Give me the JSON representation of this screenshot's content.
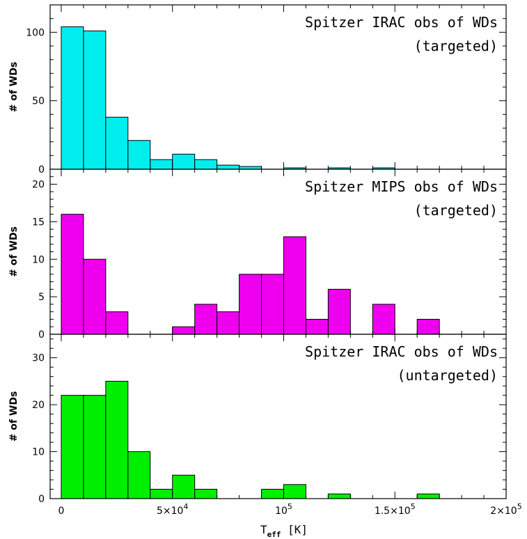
{
  "chart_data": [
    {
      "type": "bar",
      "title": "Spitzer IRAC obs of WDs",
      "subtitle": "(targeted)",
      "ylabel": "# of WDs",
      "color": "#00eeee",
      "ylim": [
        0,
        120
      ],
      "yticks": [
        0,
        50,
        100
      ],
      "bin_width": 10000,
      "x": [
        0,
        10000,
        20000,
        30000,
        40000,
        50000,
        60000,
        70000,
        80000,
        90000,
        100000,
        110000,
        120000,
        130000,
        140000,
        150000,
        160000
      ],
      "values": [
        104,
        101,
        38,
        21,
        7,
        11,
        7,
        3,
        2,
        0,
        1,
        0,
        1,
        0,
        1,
        0,
        0
      ]
    },
    {
      "type": "bar",
      "title": "Spitzer MIPS obs of WDs",
      "subtitle": "(targeted)",
      "ylabel": "# of WDs",
      "color": "#ee00ee",
      "ylim": [
        0,
        22
      ],
      "yticks": [
        0,
        5,
        10,
        15,
        20
      ],
      "bin_width": 10000,
      "x": [
        0,
        10000,
        20000,
        30000,
        40000,
        50000,
        60000,
        70000,
        80000,
        90000,
        100000,
        110000,
        120000,
        130000,
        140000,
        150000,
        160000
      ],
      "values": [
        16,
        10,
        3,
        0,
        0,
        1,
        4,
        3,
        8,
        8,
        13,
        2,
        6,
        0,
        4,
        0,
        2
      ]
    },
    {
      "type": "bar",
      "title": "Spitzer IRAC obs of WDs",
      "subtitle": "(untargeted)",
      "ylabel": "# of WDs",
      "color": "#00ee00",
      "ylim": [
        0,
        35
      ],
      "yticks": [
        0,
        10,
        20,
        30
      ],
      "bin_width": 10000,
      "x": [
        0,
        10000,
        20000,
        30000,
        40000,
        50000,
        60000,
        70000,
        80000,
        90000,
        100000,
        110000,
        120000,
        130000,
        140000,
        150000,
        160000
      ],
      "values": [
        22,
        22,
        25,
        10,
        2,
        5,
        2,
        0,
        0,
        2,
        3,
        0,
        1,
        0,
        0,
        0,
        1
      ]
    }
  ],
  "x_axis": {
    "label_main": "T",
    "label_sub": "eff",
    "label_unit": " [K]",
    "xlim": [
      -5000,
      200000
    ],
    "major_ticks": [
      0,
      50000,
      100000,
      150000,
      200000
    ],
    "tick_labels": [
      {
        "base": "0",
        "exp": ""
      },
      {
        "base": "5×10",
        "exp": "4"
      },
      {
        "base": "10",
        "exp": "5"
      },
      {
        "base": "1.5×10",
        "exp": "5"
      },
      {
        "base": "2×10",
        "exp": "5"
      }
    ]
  }
}
